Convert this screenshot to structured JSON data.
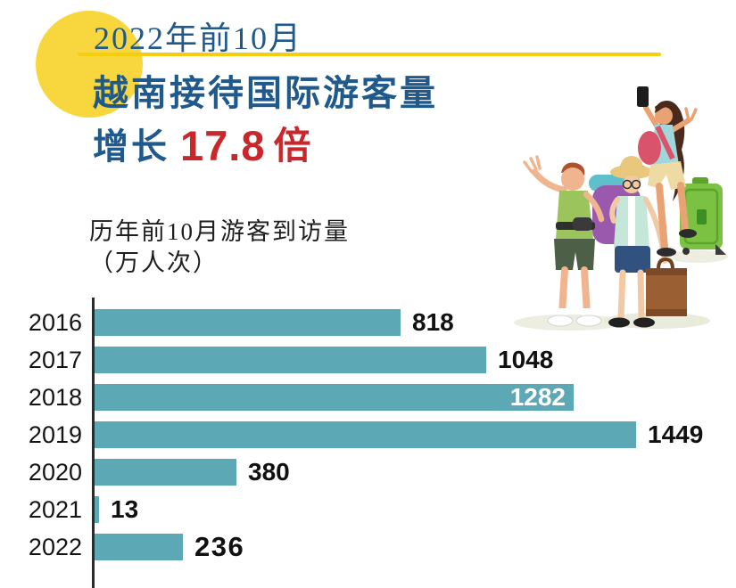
{
  "colors": {
    "accent_yellow": "#F8D73E",
    "underline_yellow": "#F5CE0F",
    "title_blue": "#20598C",
    "highlight_red": "#C8272C",
    "bar_teal": "#5CA8B4",
    "text_dark": "#141414"
  },
  "header": {
    "period": "2022年前10月",
    "title": "越南接待国际游客量",
    "growth": {
      "prefix": "增长",
      "value": "17.8",
      "unit": "倍"
    }
  },
  "chart": {
    "subtitle_line1": "历年前10月游客到访量",
    "subtitle_line2": "（万人次）"
  },
  "chart_data": {
    "type": "bar",
    "orientation": "horizontal",
    "title": "历年前10月游客到访量（万人次）",
    "unit": "万人次",
    "categories": [
      "2016",
      "2017",
      "2018",
      "2019",
      "2020",
      "2021",
      "2022"
    ],
    "values": [
      818,
      1048,
      1282,
      1449,
      380,
      13,
      236
    ],
    "xlim": [
      0,
      1449
    ],
    "grid": false,
    "legend": false,
    "bar_color": "#5CA8B4",
    "value_label_position": [
      "outside",
      "outside",
      "inside",
      "outside",
      "outside",
      "outside",
      "outside"
    ],
    "value_label_emphasis": [
      false,
      false,
      false,
      false,
      false,
      false,
      true
    ]
  },
  "illustration": {
    "name": "tourists-with-luggage"
  }
}
